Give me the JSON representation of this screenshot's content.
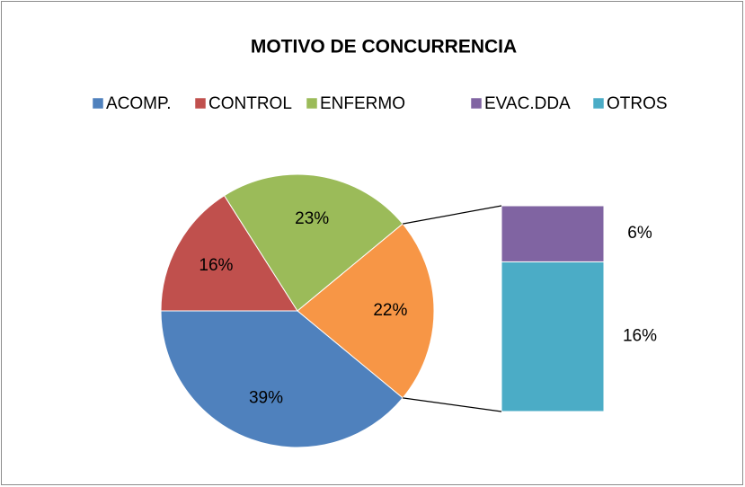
{
  "chart_data": {
    "type": "pie-of-bar",
    "title": "MOTIVO DE CONCURRENCIA",
    "categories": [
      "ACOMP.",
      "CONTROL",
      "ENFERMO",
      "EVAC.DDA",
      "OTROS"
    ],
    "values": [
      39,
      16,
      23,
      6,
      16
    ],
    "value_labels": [
      "39%",
      "16%",
      "23%",
      "6%",
      "16%"
    ],
    "colors": [
      "#4f81bd",
      "#c0504d",
      "#9bbb59",
      "#8064a2",
      "#4bacc6"
    ],
    "bar_categories": [
      3,
      4
    ],
    "other": {
      "value": 22,
      "value_label": "22%",
      "color": "#f79646"
    },
    "legend": "top"
  }
}
